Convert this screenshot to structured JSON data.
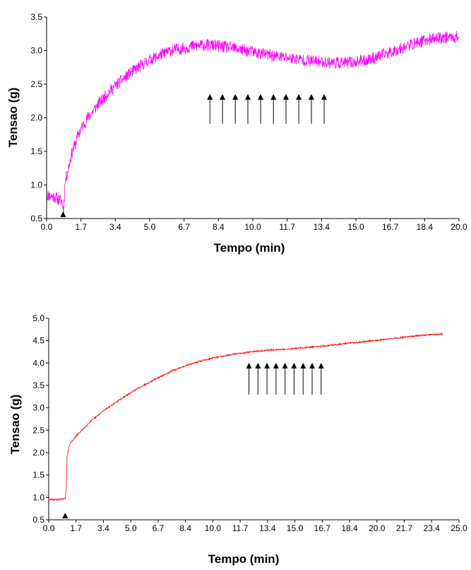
{
  "chart_data": [
    {
      "type": "line",
      "xlabel": "Tempo (min)",
      "ylabel": "Tensao (g)",
      "xlim": [
        0,
        20
      ],
      "ylim": [
        0.5,
        3.5
      ],
      "x_ticks": [
        "0.0",
        "1.7",
        "3.4",
        "5.0",
        "6.7",
        "8.4",
        "10.0",
        "11.7",
        "13.4",
        "15.0",
        "16.7",
        "18.4",
        "20.0"
      ],
      "y_ticks": [
        "0.5",
        "1.0",
        "1.5",
        "2.0",
        "2.5",
        "3.0",
        "3.5"
      ],
      "series": [
        {
          "color": "#ff00ff",
          "noise": 0.09,
          "x": [
            0,
            0.4,
            0.75,
            0.82,
            0.9,
            1.2,
            1.6,
            2.0,
            2.5,
            3.0,
            3.5,
            4.0,
            4.5,
            5.0,
            5.5,
            6.0,
            6.5,
            7.0,
            7.5,
            8.0,
            8.5,
            9.0,
            9.5,
            10.0,
            10.5,
            11.0,
            11.5,
            12.0,
            12.5,
            13.0,
            13.5,
            14.0,
            14.5,
            15.0,
            15.5,
            16.0,
            16.5,
            17.0,
            17.5,
            18.0,
            18.5,
            19.0,
            19.5,
            20.0
          ],
          "y": [
            0.85,
            0.82,
            0.75,
            0.62,
            1.05,
            1.45,
            1.8,
            2.0,
            2.2,
            2.38,
            2.52,
            2.65,
            2.76,
            2.86,
            2.93,
            3.0,
            3.03,
            3.06,
            3.08,
            3.08,
            3.06,
            3.04,
            3.01,
            2.98,
            2.95,
            2.92,
            2.9,
            2.88,
            2.86,
            2.84,
            2.83,
            2.82,
            2.82,
            2.83,
            2.86,
            2.9,
            2.96,
            3.01,
            3.07,
            3.12,
            3.16,
            3.19,
            3.2,
            3.2
          ]
        }
      ],
      "markers": {
        "triangle_x": [
          0.8
        ],
        "arrow_x": [
          7.92,
          8.53,
          9.15,
          9.76,
          10.38,
          11.0,
          11.61,
          12.23,
          12.84,
          13.46
        ]
      }
    },
    {
      "type": "line",
      "xlabel": "Tempo (min)",
      "ylabel": "Tensao (g)",
      "xlim": [
        0,
        25
      ],
      "ylim": [
        0.5,
        5.0
      ],
      "x_ticks": [
        "0.0",
        "1.7",
        "3.4",
        "5.0",
        "6.7",
        "8.4",
        "10.0",
        "11.7",
        "13.4",
        "15.0",
        "16.7",
        "18.4",
        "20.0",
        "21.7",
        "23.4",
        "25.0"
      ],
      "y_ticks": [
        "0.5",
        "1.0",
        "1.5",
        "2.0",
        "2.5",
        "3.0",
        "3.5",
        "4.0",
        "4.5",
        "5.0"
      ],
      "series": [
        {
          "color": "#ff0000",
          "noise": 0.018,
          "x": [
            0,
            0.5,
            1.0,
            1.08,
            1.12,
            1.3,
            1.7,
            2.5,
            3.5,
            4.5,
            5.5,
            6.5,
            7.5,
            8.5,
            9.5,
            10.5,
            11.5,
            12.5,
            13.5,
            14.5,
            15.5,
            16.5,
            17.5,
            18.5,
            19.5,
            20.5,
            21.5,
            22.5,
            23.5,
            24.0
          ],
          "y": [
            0.95,
            0.95,
            0.97,
            1.3,
            1.95,
            2.2,
            2.38,
            2.68,
            2.98,
            3.22,
            3.45,
            3.64,
            3.82,
            3.96,
            4.07,
            4.15,
            4.21,
            4.26,
            4.29,
            4.31,
            4.34,
            4.37,
            4.41,
            4.45,
            4.49,
            4.53,
            4.57,
            4.61,
            4.64,
            4.65
          ]
        }
      ],
      "markers": {
        "triangle_x": [
          1.0
        ],
        "arrow_x": [
          12.2,
          12.75,
          13.3,
          13.85,
          14.4,
          14.95,
          15.5,
          16.05,
          16.6
        ]
      }
    }
  ]
}
